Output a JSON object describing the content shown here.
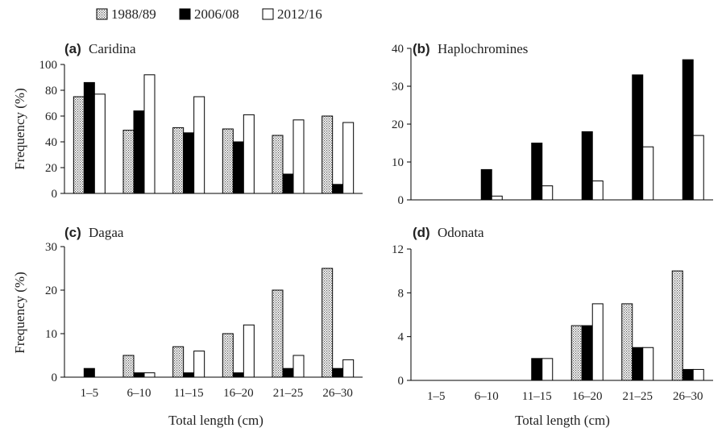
{
  "legend": [
    {
      "name": "1988/89",
      "pattern": "dots"
    },
    {
      "name": "2006/08",
      "pattern": "solid"
    },
    {
      "name": "2012/16",
      "pattern": "hollow"
    }
  ],
  "colors": {
    "bar_solid": "#000000",
    "bar_hollow": "#ffffff",
    "stroke": "#000000",
    "dots": "#555555"
  },
  "axis_labels": {
    "ylabel": "Frequency (%)",
    "xlabel": "Total length (cm)"
  },
  "chart_data": [
    {
      "type": "bar",
      "panel": "(a)",
      "title": "Caridina",
      "categories": [
        "1–5",
        "6–10",
        "11–15",
        "16–20",
        "21–25",
        "26–30"
      ],
      "ylim": [
        0,
        100
      ],
      "yticks": [
        0,
        20,
        40,
        60,
        80,
        100
      ],
      "ylabel": "Frequency (%)",
      "xlabel": "",
      "series": [
        {
          "name": "1988/89",
          "values": [
            75,
            49,
            51,
            50,
            45,
            60
          ]
        },
        {
          "name": "2006/08",
          "values": [
            86,
            64,
            47,
            40,
            15,
            7
          ]
        },
        {
          "name": "2012/16",
          "values": [
            77,
            92,
            75,
            61,
            57,
            55
          ]
        }
      ]
    },
    {
      "type": "bar",
      "panel": "(b)",
      "title": "Haplochromines",
      "categories": [
        "1–5",
        "6–10",
        "11–15",
        "16–20",
        "21–25",
        "26–30"
      ],
      "ylim": [
        0,
        40
      ],
      "yticks": [
        0,
        10,
        20,
        30,
        40
      ],
      "ylabel": "",
      "xlabel": "",
      "series": [
        {
          "name": "1988/89",
          "values": [
            0,
            0,
            0,
            0,
            0,
            0
          ]
        },
        {
          "name": "2006/08",
          "values": [
            0,
            8,
            15,
            18,
            33,
            37
          ]
        },
        {
          "name": "2012/16",
          "values": [
            0,
            1,
            3.7,
            5,
            14,
            17
          ]
        }
      ]
    },
    {
      "type": "bar",
      "panel": "(c)",
      "title": "Dagaa",
      "categories": [
        "1–5",
        "6–10",
        "11–15",
        "16–20",
        "21–25",
        "26–30"
      ],
      "ylim": [
        0,
        30
      ],
      "yticks": [
        0,
        10,
        20,
        30
      ],
      "ylabel": "Frequency (%)",
      "xlabel": "Total length (cm)",
      "series": [
        {
          "name": "1988/89",
          "values": [
            0,
            5,
            7,
            10,
            20,
            25
          ]
        },
        {
          "name": "2006/08",
          "values": [
            2,
            1,
            1,
            1,
            2,
            2
          ]
        },
        {
          "name": "2012/16",
          "values": [
            0,
            1,
            6,
            12,
            5,
            4
          ]
        }
      ]
    },
    {
      "type": "bar",
      "panel": "(d)",
      "title": "Odonata",
      "categories": [
        "1–5",
        "6–10",
        "11–15",
        "16–20",
        "21–25",
        "26–30"
      ],
      "ylim": [
        0,
        12
      ],
      "yticks": [
        0,
        4,
        8,
        12
      ],
      "ylabel": "",
      "xlabel": "Total length (cm)",
      "series": [
        {
          "name": "1988/89",
          "values": [
            0,
            0,
            0,
            5,
            7,
            10
          ]
        },
        {
          "name": "2006/08",
          "values": [
            0,
            0,
            2,
            5,
            3,
            1
          ]
        },
        {
          "name": "2012/16",
          "values": [
            0,
            0,
            2,
            7,
            3,
            1
          ]
        }
      ]
    }
  ]
}
